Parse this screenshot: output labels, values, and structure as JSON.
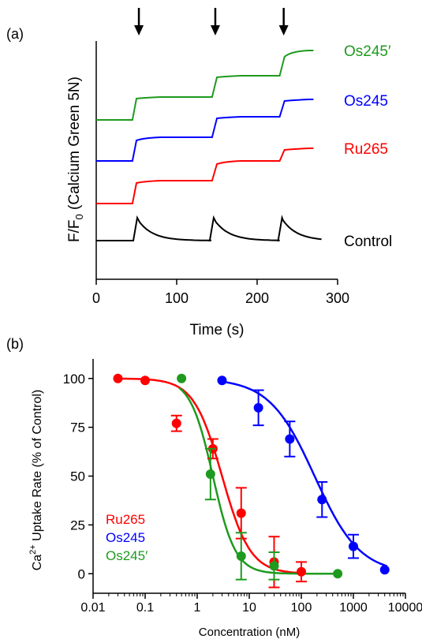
{
  "colors": {
    "control": "#000000",
    "ru265": "#ff0000",
    "os245": "#0000ff",
    "os245p": "#1e9a1e"
  },
  "panel_labels": {
    "a": "(a)",
    "b": "(b)"
  },
  "chart_data": [
    {
      "type": "line",
      "panel": "(a)",
      "xlabel": "Time (s)",
      "ylabel_main": "F/F",
      "ylabel_sub": "0",
      "ylabel_rest": " (Calcium Green 5N)",
      "xlim": [
        0,
        300
      ],
      "xticks": [
        0,
        100,
        200,
        300
      ],
      "y_axis_ticks": false,
      "grid": false,
      "addition_arrows_at_s": [
        53,
        148,
        233
      ],
      "series": [
        {
          "name": "Os245′",
          "color_key": "os245p",
          "steps": [
            [
              45,
              152
            ],
            [
              50,
              125
            ],
            [
              144,
              123
            ],
            [
              150,
              98
            ],
            [
              228,
              96
            ],
            [
              234,
              72
            ]
          ],
          "start": 152,
          "end": 64
        },
        {
          "name": "Os245",
          "color_key": "os245",
          "steps": [
            [
              45,
              204
            ],
            [
              50,
              178
            ],
            [
              144,
              174
            ],
            [
              150,
              150
            ],
            [
              228,
              148
            ],
            [
              234,
              128
            ]
          ],
          "start": 204,
          "end": 126
        },
        {
          "name": "Ru265",
          "color_key": "ru265",
          "steps": [
            [
              45,
              258
            ],
            [
              50,
              232
            ],
            [
              144,
              229
            ],
            [
              150,
              208
            ],
            [
              228,
              204
            ],
            [
              234,
              190
            ]
          ],
          "start": 258,
          "end": 188
        },
        {
          "name": "Control",
          "color_key": "control",
          "spikes_at_s": [
            50,
            145,
            230
          ],
          "baseline": 305,
          "peak": 276
        }
      ]
    },
    {
      "type": "scatter",
      "panel": "(b)",
      "xscale": "log",
      "xlim": [
        0.01,
        10000
      ],
      "xticks": [
        "0.01",
        "0.1",
        "1",
        "10",
        "100",
        "1000",
        "10000"
      ],
      "ylim": [
        -10,
        110
      ],
      "yticks": [
        0,
        25,
        50,
        75,
        100
      ],
      "xlabel": "Concentration (nM)",
      "ylabel_pre": "Ca",
      "ylabel_sup": "2+",
      "ylabel_post": " Uptake Rate (% of Control)",
      "legend_position": "bottom-left",
      "series": [
        {
          "name": "Ru265",
          "color_key": "ru265",
          "x": [
            0.03,
            0.1,
            0.4,
            2,
            7,
            30,
            100
          ],
          "y": [
            100,
            99,
            77,
            64,
            31,
            6,
            1
          ],
          "err": [
            0,
            0,
            4,
            5,
            13,
            13,
            5
          ],
          "fit": {
            "ic50": 3.0,
            "hill": 1.6
          }
        },
        {
          "name": "Os245",
          "color_key": "os245",
          "x": [
            3,
            15,
            60,
            250,
            1000,
            4000
          ],
          "y": [
            99,
            85,
            69,
            38,
            14,
            2
          ],
          "err": [
            0,
            9,
            9,
            9,
            6,
            0
          ],
          "fit": {
            "ic50": 180,
            "hill": 1.0
          }
        },
        {
          "name": "Os245′",
          "color_key": "os245p",
          "x": [
            0.5,
            1.8,
            7,
            30,
            500
          ],
          "y": [
            100,
            51,
            9,
            4,
            0
          ],
          "err": [
            0,
            13,
            12,
            7,
            0
          ],
          "fit": {
            "ic50": 2.0,
            "hill": 2.0
          }
        }
      ]
    }
  ]
}
